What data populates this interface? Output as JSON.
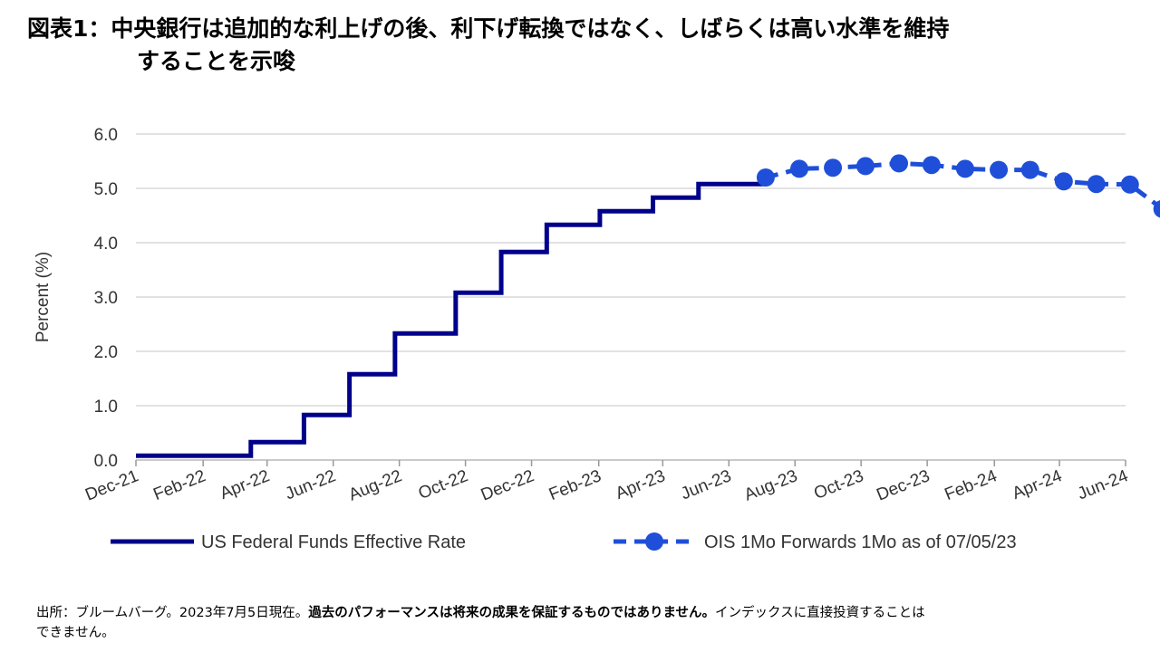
{
  "title": {
    "line1": "図表1：中央銀行は追加的な利上げの後、利下げ転換ではなく、しばらくは高い水準を維持",
    "line2": "することを示唆"
  },
  "footnote": {
    "part1": "出所：ブルームバーグ。2023年7月5日現在。",
    "part2_bold": "過去のパフォーマンスは将来の成果を保証するものではありません。",
    "part3": "インデックスに直接投資することは",
    "line2": "できません。"
  },
  "chart_data": {
    "type": "line",
    "ylabel": "Percent (%)",
    "ylim": [
      0.0,
      6.0
    ],
    "yticks": [
      "0.0",
      "1.0",
      "2.0",
      "3.0",
      "4.0",
      "5.0",
      "6.0"
    ],
    "x_start": "Dec-21",
    "x_end": "Jun-24",
    "xticks": [
      "Dec-21",
      "Feb-22",
      "Apr-22",
      "Jun-22",
      "Aug-22",
      "Oct-22",
      "Dec-22",
      "Feb-23",
      "Apr-23",
      "Jun-23",
      "Aug-23",
      "Oct-23",
      "Dec-23",
      "Feb-24",
      "Apr-24",
      "Jun-24"
    ],
    "grid": "horizontal",
    "legend_position": "bottom",
    "series": [
      {
        "name": "US Federal Funds Effective Rate",
        "style": "step",
        "color": "#00008B",
        "points": [
          {
            "x": "2021-12-01",
            "y": 0.08
          },
          {
            "x": "2022-03-17",
            "y": 0.33
          },
          {
            "x": "2022-05-05",
            "y": 0.83
          },
          {
            "x": "2022-06-16",
            "y": 1.58
          },
          {
            "x": "2022-07-28",
            "y": 2.33
          },
          {
            "x": "2022-09-22",
            "y": 3.08
          },
          {
            "x": "2022-11-03",
            "y": 3.83
          },
          {
            "x": "2022-12-15",
            "y": 4.33
          },
          {
            "x": "2023-02-02",
            "y": 4.58
          },
          {
            "x": "2023-03-23",
            "y": 4.83
          },
          {
            "x": "2023-05-04",
            "y": 5.08
          },
          {
            "x": "2023-07-05",
            "y": 5.08
          }
        ]
      },
      {
        "name": "OIS 1Mo Forwards 1Mo as of 07/05/23",
        "style": "dashed-markers",
        "color": "#1f4fd8",
        "points": [
          {
            "x": "2023-07-05",
            "y": 5.2
          },
          {
            "x": "2023-08-05",
            "y": 5.36
          },
          {
            "x": "2023-09-05",
            "y": 5.38
          },
          {
            "x": "2023-10-05",
            "y": 5.41
          },
          {
            "x": "2023-11-05",
            "y": 5.46
          },
          {
            "x": "2023-12-05",
            "y": 5.43
          },
          {
            "x": "2024-01-05",
            "y": 5.36
          },
          {
            "x": "2024-02-05",
            "y": 5.34
          },
          {
            "x": "2024-03-05",
            "y": 5.34
          },
          {
            "x": "2024-04-05",
            "y": 5.13
          },
          {
            "x": "2024-05-05",
            "y": 5.08
          },
          {
            "x": "2024-06-05",
            "y": 5.07
          },
          {
            "x": "2024-07-05",
            "y": 4.62
          }
        ]
      }
    ]
  }
}
